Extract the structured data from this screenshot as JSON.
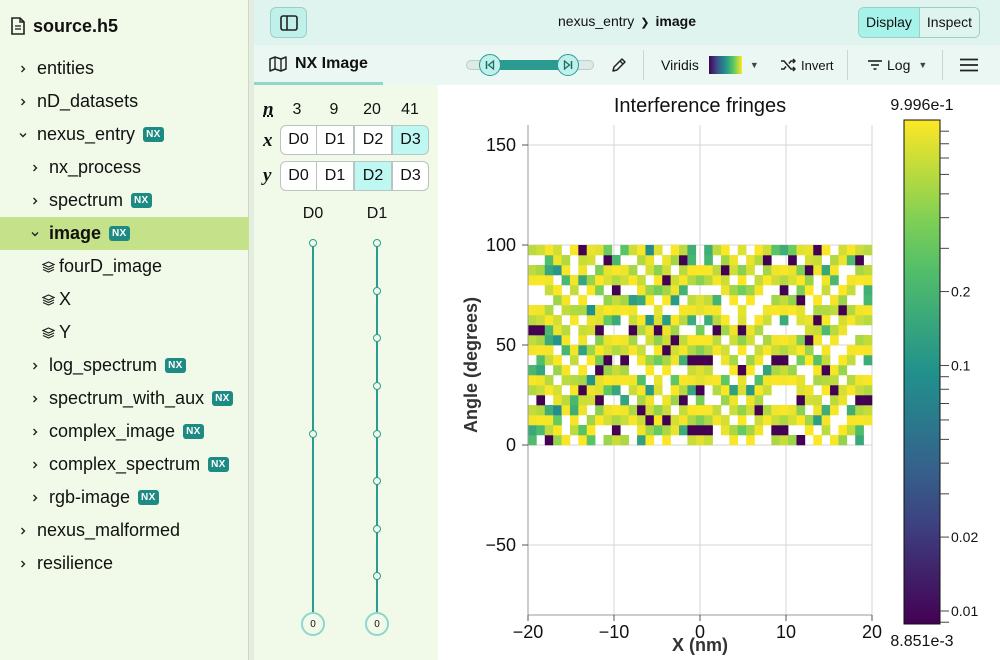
{
  "file_name": "source.h5",
  "tree": [
    {
      "label": "entities",
      "depth": 0,
      "chevron": "right",
      "nx": false,
      "dataset": false
    },
    {
      "label": "nD_datasets",
      "depth": 0,
      "chevron": "right",
      "nx": false,
      "dataset": false
    },
    {
      "label": "nexus_entry",
      "depth": 0,
      "chevron": "down",
      "nx": true,
      "dataset": false
    },
    {
      "label": "nx_process",
      "depth": 1,
      "chevron": "right",
      "nx": false,
      "dataset": false
    },
    {
      "label": "spectrum",
      "depth": 1,
      "chevron": "right",
      "nx": true,
      "dataset": false
    },
    {
      "label": "image",
      "depth": 1,
      "chevron": "down",
      "nx": true,
      "dataset": false,
      "selected": true
    },
    {
      "label": "fourD_image",
      "depth": 2,
      "chevron": "none",
      "nx": false,
      "dataset": true
    },
    {
      "label": "X",
      "depth": 2,
      "chevron": "none",
      "nx": false,
      "dataset": true
    },
    {
      "label": "Y",
      "depth": 2,
      "chevron": "none",
      "nx": false,
      "dataset": true
    },
    {
      "label": "log_spectrum",
      "depth": 1,
      "chevron": "right",
      "nx": true,
      "dataset": false
    },
    {
      "label": "spectrum_with_aux",
      "depth": 1,
      "chevron": "right",
      "nx": true,
      "dataset": false
    },
    {
      "label": "complex_image",
      "depth": 1,
      "chevron": "right",
      "nx": true,
      "dataset": false
    },
    {
      "label": "complex_spectrum",
      "depth": 1,
      "chevron": "right",
      "nx": true,
      "dataset": false
    },
    {
      "label": "rgb-image",
      "depth": 1,
      "chevron": "right",
      "nx": true,
      "dataset": false
    },
    {
      "label": "nexus_malformed",
      "depth": 0,
      "chevron": "right",
      "nx": false,
      "dataset": false
    },
    {
      "label": "resilience",
      "depth": 0,
      "chevron": "right",
      "nx": false,
      "dataset": false
    }
  ],
  "nx_badge": "NX",
  "breadcrumb": {
    "parent": "nexus_entry",
    "current": "image"
  },
  "modes": {
    "display": "Display",
    "inspect": "Inspect",
    "active": "display"
  },
  "toolbar": {
    "vis_tab": "NX Image",
    "colormap": "Viridis",
    "invert": "Invert",
    "scale": "Log"
  },
  "dims": {
    "n_label": "n",
    "x_label": "x",
    "y_label": "y",
    "sizes": [
      "3",
      "9",
      "20",
      "41"
    ],
    "x_buttons": [
      "D0",
      "D1",
      "D2",
      "D3"
    ],
    "x_active": 3,
    "y_buttons": [
      "D0",
      "D1",
      "D2",
      "D3"
    ],
    "y_active": 2,
    "slicers": [
      {
        "label": "D0",
        "value": "0",
        "size": 3
      },
      {
        "label": "D1",
        "value": "0",
        "size": 9
      }
    ]
  },
  "colors": {
    "accent": "#2b9b92",
    "selected_row": "#c5e18a",
    "sidebar_bg": "#f1fae8"
  },
  "chart_data": {
    "type": "heatmap",
    "title": "Interference fringes",
    "xlabel": "X (nm)",
    "ylabel": "Angle (degrees)",
    "xlim": [
      -20,
      20
    ],
    "ylim": [
      -85,
      160
    ],
    "x_ticks": [
      "−20",
      "−10",
      "0",
      "10",
      "20"
    ],
    "y_ticks": [
      "150",
      "100",
      "50",
      "0",
      "−50"
    ],
    "x_range": [
      -20,
      20
    ],
    "y_range": [
      0,
      100
    ],
    "grid": [
      "0110011010102000000001001111000002101000000101",
      "0201000000010000200210102111020100000000000000",
      "0000000000000000000000000000000000000000000000"
    ],
    "colorbar": {
      "max_label": "9.996e-1",
      "min_label": "8.851e-3",
      "tick_labels": [
        "0.2",
        "0.1",
        "0.02",
        "0.01"
      ],
      "ticks": [
        0.2,
        0.1,
        0.02,
        0.01
      ],
      "min": 0.008851,
      "max": 0.9996,
      "scale": "log"
    }
  }
}
